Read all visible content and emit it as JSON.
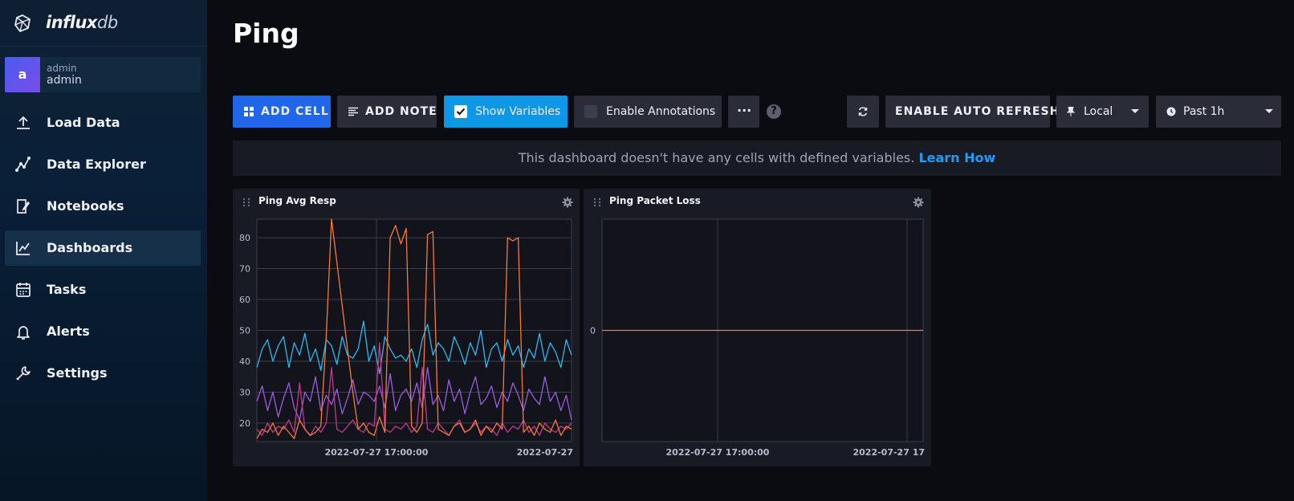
{
  "brand": {
    "name_bold": "influx",
    "name_light": "db"
  },
  "user": {
    "initial": "a",
    "org": "admin",
    "name": "admin"
  },
  "nav": [
    {
      "label": "Load Data",
      "icon": "upload-icon"
    },
    {
      "label": "Data Explorer",
      "icon": "graph-line-icon"
    },
    {
      "label": "Notebooks",
      "icon": "notebook-icon"
    },
    {
      "label": "Dashboards",
      "icon": "dashboard-icon",
      "active": true
    },
    {
      "label": "Tasks",
      "icon": "calendar-icon"
    },
    {
      "label": "Alerts",
      "icon": "bell-icon"
    },
    {
      "label": "Settings",
      "icon": "wrench-icon"
    }
  ],
  "page": {
    "title": "Ping"
  },
  "toolbar": {
    "add_cell": "ADD CELL",
    "add_note": "ADD NOTE",
    "show_variables": "Show Variables",
    "enable_annotations": "Enable Annotations",
    "more": "···",
    "help": "?",
    "auto_refresh": "ENABLE AUTO REFRESH",
    "timezone": "Local",
    "time_range": "Past 1h"
  },
  "banner": {
    "text": "This dashboard doesn't have any cells with defined variables.",
    "link": "Learn How"
  },
  "colors": {
    "accent": "#1f67e8",
    "check": "#0e97e6",
    "series": [
      "#34b6ef",
      "#9b5de0",
      "#c2398e",
      "#f57b3a"
    ]
  },
  "cells": [
    {
      "title": "Ping Avg Resp",
      "x_ticks": [
        "2022-07-27 17:00:00",
        "2022-07-27"
      ]
    },
    {
      "title": "Ping Packet Loss",
      "x_ticks": [
        "2022-07-27 17:00:00",
        "2022-07-27 17"
      ]
    }
  ],
  "chart_data": [
    {
      "type": "line",
      "title": "Ping Avg Resp",
      "y_ticks": [
        20,
        30,
        40,
        50,
        60,
        70,
        80
      ],
      "ylim": [
        14,
        86
      ],
      "xlim": [
        0,
        100
      ],
      "x_tick_positions": [
        38,
        100
      ],
      "grid": true,
      "series": [
        {
          "color": "#34b6ef",
          "values": [
            38,
            44,
            47,
            40,
            45,
            48,
            38,
            46,
            42,
            49,
            40,
            44,
            37,
            47,
            45,
            39,
            48,
            42,
            41,
            44,
            53,
            40,
            45,
            36,
            48,
            44,
            41,
            42,
            40,
            44,
            38,
            47,
            52,
            42,
            46,
            44,
            40,
            48,
            44,
            39,
            46,
            42,
            50,
            38,
            44,
            46,
            40,
            47,
            42,
            45,
            38,
            44,
            41,
            49,
            40,
            46,
            43,
            38,
            47,
            42
          ]
        },
        {
          "color": "#9b5de0",
          "values": [
            27,
            32,
            24,
            30,
            22,
            28,
            33,
            25,
            21,
            30,
            27,
            35,
            24,
            29,
            26,
            31,
            23,
            28,
            34,
            26,
            30,
            29,
            27,
            32,
            25,
            36,
            24,
            29,
            31,
            27,
            33,
            25,
            38,
            26,
            29,
            24,
            34,
            27,
            31,
            23,
            30,
            35,
            26,
            28,
            32,
            25,
            30,
            27,
            33,
            29,
            24,
            31,
            28,
            26,
            35,
            27,
            30,
            24,
            29,
            21
          ]
        },
        {
          "color": "#c2398e",
          "values": [
            18,
            16,
            20,
            17,
            19,
            18,
            21,
            17,
            33,
            18,
            16,
            19,
            17,
            20,
            38,
            18,
            17,
            19,
            21,
            18,
            17,
            20,
            19,
            46,
            18,
            17,
            19,
            18,
            20,
            17,
            19,
            38,
            18,
            17,
            20,
            18,
            16,
            19,
            21,
            17,
            18,
            20,
            17,
            19,
            18,
            16,
            20,
            17,
            19,
            18,
            21,
            17,
            19,
            16,
            20,
            18,
            17,
            19,
            18,
            20
          ]
        },
        {
          "color": "#f57b3a",
          "values": [
            15,
            18,
            17,
            20,
            16,
            19,
            17,
            15,
            21,
            18,
            16,
            17,
            19,
            48,
            86,
            72,
            58,
            44,
            30,
            18,
            20,
            17,
            16,
            22,
            17,
            80,
            84,
            78,
            83,
            19,
            17,
            20,
            81,
            82,
            18,
            17,
            16,
            19,
            20,
            17,
            18,
            21,
            16,
            19,
            17,
            20,
            18,
            80,
            79,
            80,
            17,
            19,
            16,
            20,
            18,
            17,
            21,
            16,
            19,
            18
          ]
        }
      ]
    },
    {
      "type": "line",
      "title": "Ping Packet Loss",
      "y_ticks": [
        0
      ],
      "ylim": [
        -1,
        1
      ],
      "xlim": [
        0,
        100
      ],
      "x_tick_positions": [
        36,
        95
      ],
      "grid": true,
      "series": [
        {
          "color": "#f57b3a",
          "values": [
            0,
            0
          ]
        }
      ]
    }
  ]
}
